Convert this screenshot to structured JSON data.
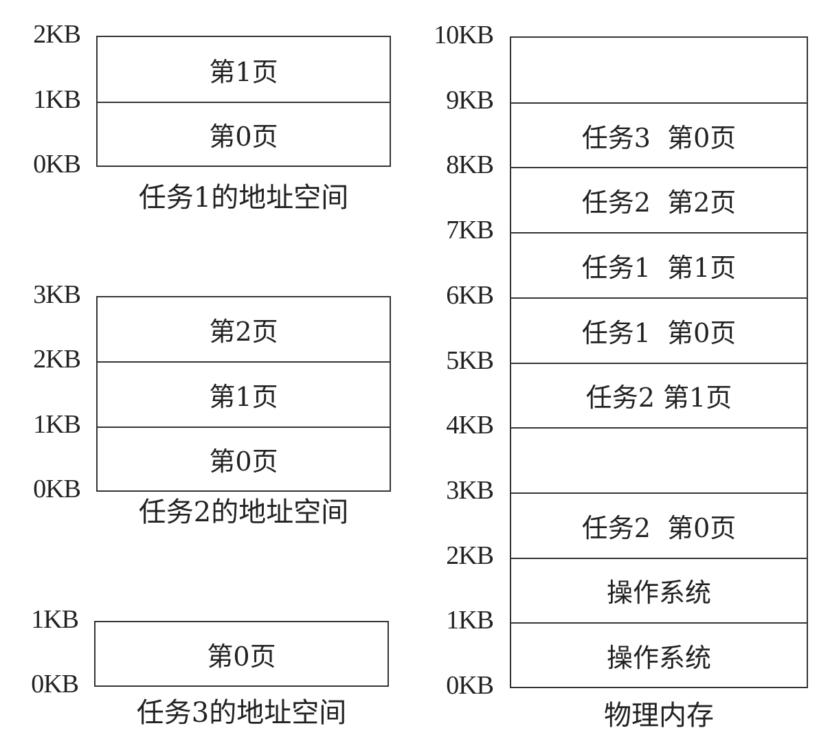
{
  "address_spaces": [
    {
      "caption": "任务1的地址空间",
      "ticks": [
        "0KB",
        "1KB",
        "2KB"
      ],
      "pages": [
        "第0页",
        "第1页"
      ]
    },
    {
      "caption": "任务2的地址空间",
      "ticks": [
        "0KB",
        "1KB",
        "2KB",
        "3KB"
      ],
      "pages": [
        "第0页",
        "第1页",
        "第2页"
      ]
    },
    {
      "caption": "任务3的地址空间",
      "ticks": [
        "0KB",
        "1KB"
      ],
      "pages": [
        "第0页"
      ]
    }
  ],
  "physical_memory": {
    "caption": "物理内存",
    "ticks": [
      "0KB",
      "1KB",
      "2KB",
      "3KB",
      "4KB",
      "5KB",
      "6KB",
      "7KB",
      "8KB",
      "9KB",
      "10KB"
    ],
    "frames": [
      "操作系统",
      "操作系统",
      "任务2  第0页",
      "",
      "任务2 第1页",
      "任务1  第0页",
      "任务1  第1页",
      "任务2  第2页",
      "任务3  第0页",
      ""
    ]
  }
}
